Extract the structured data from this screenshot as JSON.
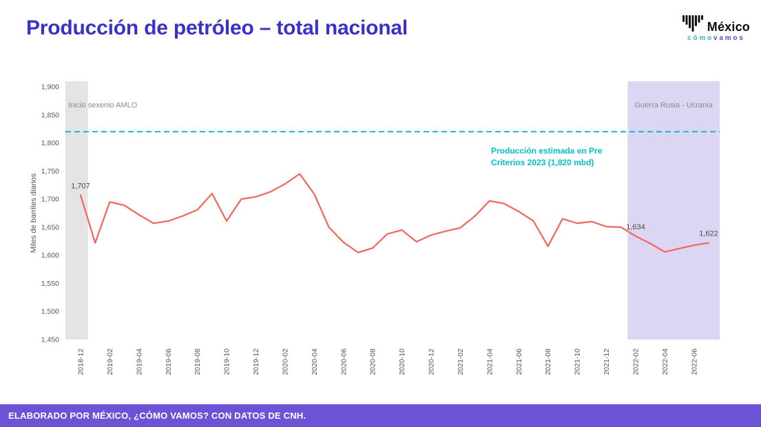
{
  "header": {
    "title": "Producción de petróleo – total nacional",
    "logo": {
      "brand": "México",
      "tagline_word1": "cómo",
      "tagline_word2": "vamos"
    }
  },
  "colors": {
    "title_blue": "#3a31c8",
    "footer_purple": "#6e52d6",
    "line_coral": "#f4695f",
    "reference_teal": "#00c0cb",
    "region_gray": "#e4e4e4",
    "region_lavender": "#dcd6f4"
  },
  "chart_data": {
    "type": "line",
    "title": "Producción de petróleo – total nacional",
    "xlabel": "",
    "ylabel": "Miles de barriles diarios",
    "ylim": [
      1450,
      1900
    ],
    "ytick_step": 50,
    "xtick_every": 2,
    "grid": false,
    "legend": false,
    "x": [
      "2018-12",
      "2019-01",
      "2019-02",
      "2019-03",
      "2019-04",
      "2019-05",
      "2019-06",
      "2019-07",
      "2019-08",
      "2019-09",
      "2019-10",
      "2019-11",
      "2019-12",
      "2020-01",
      "2020-02",
      "2020-03",
      "2020-04",
      "2020-05",
      "2020-06",
      "2020-07",
      "2020-08",
      "2020-09",
      "2020-10",
      "2020-11",
      "2020-12",
      "2021-01",
      "2021-02",
      "2021-03",
      "2021-04",
      "2021-05",
      "2021-06",
      "2021-07",
      "2021-08",
      "2021-09",
      "2021-10",
      "2021-11",
      "2021-12",
      "2022-01",
      "2022-02",
      "2022-03",
      "2022-04",
      "2022-05",
      "2022-06",
      "2022-07"
    ],
    "series": [
      {
        "name": "Producción de petróleo – total nacional",
        "color": "#f4695f",
        "values": [
          1707,
          1622,
          1695,
          1689,
          1672,
          1657,
          1661,
          1670,
          1681,
          1710,
          1661,
          1700,
          1704,
          1713,
          1727,
          1745,
          1709,
          1650,
          1623,
          1605,
          1613,
          1638,
          1645,
          1624,
          1636,
          1643,
          1649,
          1670,
          1697,
          1692,
          1678,
          1661,
          1616,
          1665,
          1657,
          1660,
          1651,
          1650,
          1634,
          1621,
          1606,
          1612,
          1618,
          1622
        ]
      }
    ],
    "reference_line": {
      "value": 1820,
      "color": "#00c0cb",
      "style": "dashed",
      "label_lines": [
        "Producción estimada en Pre",
        "Criterios 2023 (1,820 mbd)"
      ]
    },
    "regions": [
      {
        "label": "Inicio sexenio AMLO",
        "start": "2018-12",
        "end": "2018-12",
        "color": "#e4e4e4"
      },
      {
        "label": "Guerra Rusia - Ucrania",
        "start": "2022-02",
        "end": "2022-07",
        "color": "#dcd6f4"
      }
    ],
    "point_labels": [
      {
        "x": "2018-12",
        "text": "1,707"
      },
      {
        "x": "2022-02",
        "text": "1,634"
      },
      {
        "x": "2022-07",
        "text": "1,622"
      }
    ]
  },
  "footer": {
    "text": "ELABORADO POR MÉXICO, ¿CÓMO VAMOS? CON DATOS DE CNH."
  }
}
